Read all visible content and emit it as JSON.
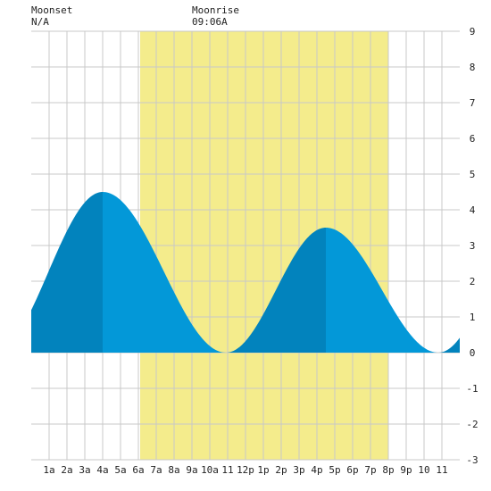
{
  "header": {
    "moonset_label": "Moonset",
    "moonset_value": "N/A",
    "moonrise_label": "Moonrise",
    "moonrise_value": "09:06A"
  },
  "colors": {
    "daylight": "#f4ec8c",
    "grid": "#c8c8c8",
    "tide_rising": "#0283bd",
    "tide_falling": "#0398d8",
    "background": "#ffffff"
  },
  "chart_data": {
    "type": "area",
    "title": "",
    "xlabel": "",
    "ylabel": "",
    "x_unit": "hour",
    "xlim": [
      0,
      24
    ],
    "ylim": [
      -3,
      9
    ],
    "y_ticks": [
      -3,
      -2,
      -1,
      0,
      1,
      2,
      3,
      4,
      5,
      6,
      7,
      8,
      9
    ],
    "x_ticks": [
      {
        "h": 1,
        "label": "1a"
      },
      {
        "h": 2,
        "label": "2a"
      },
      {
        "h": 3,
        "label": "3a"
      },
      {
        "h": 4,
        "label": "4a"
      },
      {
        "h": 5,
        "label": "5a"
      },
      {
        "h": 6,
        "label": "6a"
      },
      {
        "h": 7,
        "label": "7a"
      },
      {
        "h": 8,
        "label": "8a"
      },
      {
        "h": 9,
        "label": "9a"
      },
      {
        "h": 10,
        "label": "10a"
      },
      {
        "h": 11,
        "label": "11"
      },
      {
        "h": 12,
        "label": "12p"
      },
      {
        "h": 13,
        "label": "1p"
      },
      {
        "h": 14,
        "label": "2p"
      },
      {
        "h": 15,
        "label": "3p"
      },
      {
        "h": 16,
        "label": "4p"
      },
      {
        "h": 17,
        "label": "5p"
      },
      {
        "h": 18,
        "label": "6p"
      },
      {
        "h": 19,
        "label": "7p"
      },
      {
        "h": 20,
        "label": "8p"
      },
      {
        "h": 21,
        "label": "9p"
      },
      {
        "h": 22,
        "label": "10"
      },
      {
        "h": 23,
        "label": "11"
      }
    ],
    "daylight": {
      "start": 6.1,
      "end": 20.0
    },
    "extrema": [
      {
        "time": -2.1,
        "height": 0.0,
        "kind": "low"
      },
      {
        "time": 4.0,
        "height": 4.5,
        "kind": "high"
      },
      {
        "time": 10.9,
        "height": 0.0,
        "kind": "low"
      },
      {
        "time": 16.5,
        "height": 3.5,
        "kind": "high"
      },
      {
        "time": 22.8,
        "height": 0.0,
        "kind": "low"
      },
      {
        "time": 28.9,
        "height": 4.5,
        "kind": "high"
      }
    ]
  }
}
